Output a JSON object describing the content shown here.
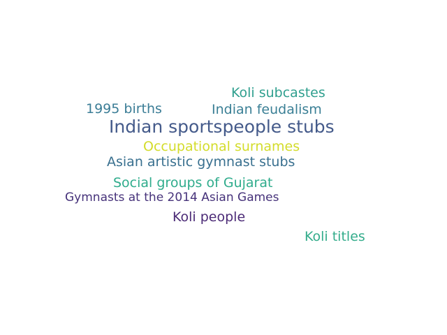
{
  "words": [
    {
      "text": "Koli subcastes",
      "color": "#2f9f8e"
    },
    {
      "text": "1995 births",
      "color": "#3b7d96"
    },
    {
      "text": "Indian feudalism",
      "color": "#3a7f95"
    },
    {
      "text": "Indian sportspeople stubs",
      "color": "#445a8a"
    },
    {
      "text": "Occupational surnames",
      "color": "#d3dc2a"
    },
    {
      "text": "Asian artistic gymnast stubs",
      "color": "#39708f"
    },
    {
      "text": "Social groups of Gujarat",
      "color": "#2fac8c"
    },
    {
      "text": "Gymnasts at the 2014 Asian Games",
      "color": "#46327a"
    },
    {
      "text": "Koli people",
      "color": "#4b2a76"
    },
    {
      "text": "Koli titles",
      "color": "#33ac8b"
    }
  ]
}
